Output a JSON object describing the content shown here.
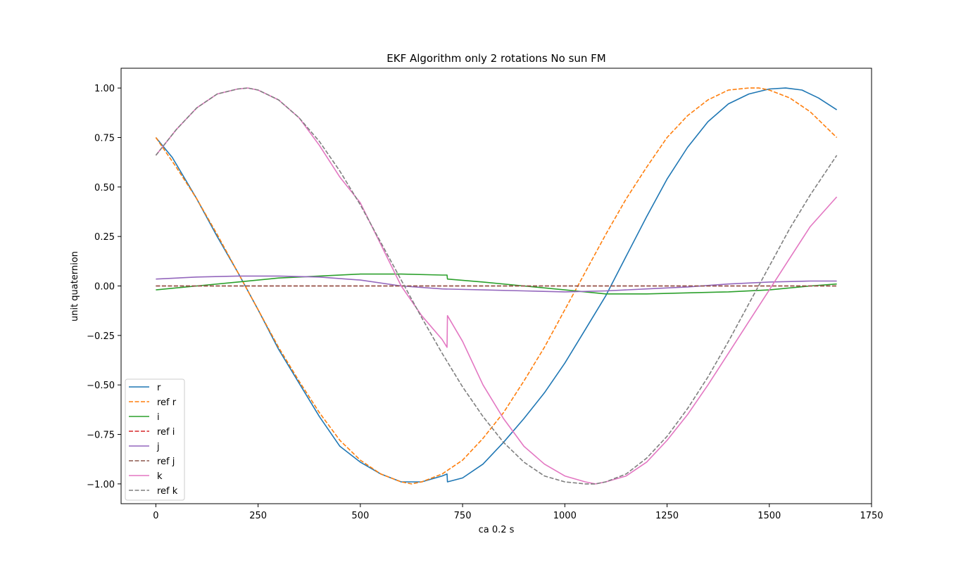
{
  "chart_data": {
    "type": "line",
    "title": "EKF Algorithm only 2 rotations No sun FM",
    "xlabel": "ca 0.2 s",
    "ylabel": "unit quaternion",
    "xlim": [
      -85,
      1750
    ],
    "ylim": [
      -1.1,
      1.1
    ],
    "xticks": [
      0,
      250,
      500,
      750,
      1000,
      1250,
      1500,
      1750
    ],
    "xtick_labels": [
      "0",
      "250",
      "500",
      "750",
      "1000",
      "1250",
      "1500",
      "1750"
    ],
    "yticks": [
      1.0,
      0.75,
      0.5,
      0.25,
      0.0,
      -0.25,
      -0.5,
      -0.75,
      -1.0
    ],
    "ytick_labels": [
      "1.00",
      "0.75",
      "0.50",
      "0.25",
      "0.00",
      "−0.25",
      "−0.50",
      "−0.75",
      "−1.00"
    ],
    "grid": false,
    "legend_position": "lower-left",
    "series": [
      {
        "name": "r",
        "color": "#1f77b4",
        "dashed": false,
        "x": [
          0,
          40,
          100,
          150,
          200,
          250,
          300,
          350,
          400,
          450,
          500,
          550,
          600,
          650,
          700,
          712,
          713,
          750,
          800,
          850,
          900,
          950,
          1000,
          1050,
          1100,
          1150,
          1200,
          1250,
          1300,
          1350,
          1400,
          1450,
          1500,
          1540,
          1580,
          1620,
          1665
        ],
        "y": [
          0.75,
          0.65,
          0.44,
          0.25,
          0.07,
          -0.12,
          -0.32,
          -0.49,
          -0.66,
          -0.81,
          -0.89,
          -0.95,
          -0.99,
          -0.99,
          -0.96,
          -0.95,
          -0.99,
          -0.97,
          -0.9,
          -0.79,
          -0.67,
          -0.54,
          -0.39,
          -0.22,
          -0.05,
          0.15,
          0.35,
          0.54,
          0.7,
          0.83,
          0.92,
          0.97,
          0.995,
          1.0,
          0.99,
          0.95,
          0.89
        ]
      },
      {
        "name": "ref r",
        "color": "#ff7f0e",
        "dashed": true,
        "x": [
          0,
          50,
          100,
          150,
          200,
          250,
          300,
          350,
          400,
          450,
          500,
          550,
          600,
          625,
          650,
          700,
          750,
          800,
          850,
          900,
          950,
          1000,
          1050,
          1100,
          1150,
          1200,
          1250,
          1300,
          1350,
          1400,
          1450,
          1475,
          1500,
          1550,
          1600,
          1665
        ],
        "y": [
          0.75,
          0.6,
          0.44,
          0.26,
          0.07,
          -0.12,
          -0.31,
          -0.48,
          -0.64,
          -0.78,
          -0.88,
          -0.95,
          -0.99,
          -1.0,
          -0.99,
          -0.95,
          -0.88,
          -0.77,
          -0.64,
          -0.48,
          -0.31,
          -0.12,
          0.07,
          0.26,
          0.44,
          0.6,
          0.75,
          0.86,
          0.94,
          0.99,
          1.0,
          1.0,
          0.99,
          0.95,
          0.88,
          0.75
        ]
      },
      {
        "name": "i",
        "color": "#2ca02c",
        "dashed": false,
        "x": [
          0,
          100,
          200,
          300,
          400,
          500,
          600,
          700,
          712,
          713,
          800,
          900,
          1000,
          1100,
          1200,
          1300,
          1400,
          1500,
          1600,
          1665
        ],
        "y": [
          -0.02,
          0.0,
          0.02,
          0.04,
          0.05,
          0.06,
          0.06,
          0.055,
          0.055,
          0.035,
          0.02,
          0.0,
          -0.02,
          -0.04,
          -0.04,
          -0.035,
          -0.03,
          -0.02,
          0.0,
          0.01
        ]
      },
      {
        "name": "ref i",
        "color": "#d62728",
        "dashed": true,
        "x": [
          0,
          1665
        ],
        "y": [
          0.0,
          0.0
        ]
      },
      {
        "name": "j",
        "color": "#9467bd",
        "dashed": false,
        "x": [
          0,
          100,
          200,
          300,
          400,
          500,
          600,
          700,
          800,
          900,
          1000,
          1100,
          1200,
          1300,
          1400,
          1500,
          1600,
          1665
        ],
        "y": [
          0.035,
          0.045,
          0.05,
          0.05,
          0.045,
          0.03,
          0.0,
          -0.015,
          -0.02,
          -0.025,
          -0.03,
          -0.025,
          -0.015,
          -0.005,
          0.01,
          0.02,
          0.025,
          0.025
        ]
      },
      {
        "name": "ref j",
        "color": "#8c564b",
        "dashed": true,
        "x": [
          0,
          1665
        ],
        "y": [
          0.0,
          0.0
        ]
      },
      {
        "name": "k",
        "color": "#e377c2",
        "dashed": false,
        "x": [
          0,
          50,
          100,
          150,
          200,
          225,
          250,
          300,
          350,
          400,
          450,
          500,
          550,
          600,
          650,
          700,
          712,
          713,
          750,
          800,
          850,
          900,
          950,
          1000,
          1050,
          1075,
          1100,
          1150,
          1200,
          1250,
          1300,
          1350,
          1400,
          1450,
          1500,
          1550,
          1600,
          1665
        ],
        "y": [
          0.66,
          0.79,
          0.9,
          0.97,
          0.995,
          1.0,
          0.99,
          0.94,
          0.85,
          0.71,
          0.55,
          0.42,
          0.21,
          0.0,
          -0.15,
          -0.27,
          -0.31,
          -0.15,
          -0.28,
          -0.5,
          -0.67,
          -0.81,
          -0.9,
          -0.96,
          -0.99,
          -1.0,
          -0.99,
          -0.96,
          -0.89,
          -0.78,
          -0.65,
          -0.5,
          -0.34,
          -0.18,
          -0.02,
          0.14,
          0.3,
          0.45
        ]
      },
      {
        "name": "ref k",
        "color": "#7f7f7f",
        "dashed": true,
        "x": [
          0,
          50,
          100,
          150,
          200,
          225,
          250,
          300,
          350,
          400,
          450,
          500,
          550,
          600,
          650,
          700,
          750,
          800,
          850,
          900,
          950,
          1000,
          1050,
          1075,
          1100,
          1150,
          1200,
          1250,
          1300,
          1350,
          1400,
          1450,
          1500,
          1550,
          1600,
          1665
        ],
        "y": [
          0.66,
          0.79,
          0.9,
          0.97,
          0.995,
          1.0,
          0.99,
          0.94,
          0.85,
          0.73,
          0.58,
          0.41,
          0.22,
          0.03,
          -0.16,
          -0.34,
          -0.51,
          -0.66,
          -0.79,
          -0.89,
          -0.96,
          -0.99,
          -1.0,
          -1.0,
          -0.99,
          -0.95,
          -0.87,
          -0.76,
          -0.62,
          -0.46,
          -0.28,
          -0.09,
          0.1,
          0.29,
          0.46,
          0.66
        ]
      }
    ]
  }
}
